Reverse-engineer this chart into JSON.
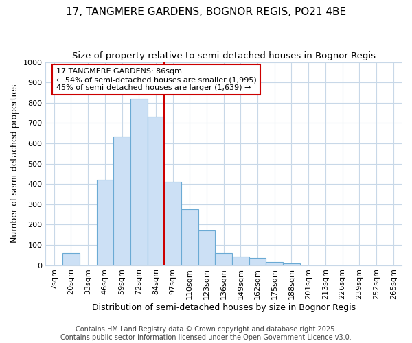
{
  "title_line1": "17, TANGMERE GARDENS, BOGNOR REGIS, PO21 4BE",
  "title_line2": "Size of property relative to semi-detached houses in Bognor Regis",
  "xlabel": "Distribution of semi-detached houses by size in Bognor Regis",
  "ylabel": "Number of semi-detached properties",
  "categories": [
    "7sqm",
    "20sqm",
    "33sqm",
    "46sqm",
    "59sqm",
    "72sqm",
    "84sqm",
    "97sqm",
    "110sqm",
    "123sqm",
    "136sqm",
    "149sqm",
    "162sqm",
    "175sqm",
    "188sqm",
    "201sqm",
    "213sqm",
    "226sqm",
    "239sqm",
    "252sqm",
    "265sqm"
  ],
  "values": [
    0,
    60,
    0,
    420,
    635,
    820,
    730,
    410,
    275,
    170,
    60,
    42,
    35,
    15,
    10,
    0,
    0,
    0,
    0,
    0,
    0
  ],
  "bar_color": "#cce0f5",
  "bar_edge_color": "#6aaad4",
  "property_line_color": "#cc0000",
  "annotation_text": "17 TANGMERE GARDENS: 86sqm\n← 54% of semi-detached houses are smaller (1,995)\n45% of semi-detached houses are larger (1,639) →",
  "annotation_box_color": "#ffffff",
  "annotation_border_color": "#cc0000",
  "ylim": [
    0,
    1000
  ],
  "yticks": [
    0,
    100,
    200,
    300,
    400,
    500,
    600,
    700,
    800,
    900,
    1000
  ],
  "footer_line1": "Contains HM Land Registry data © Crown copyright and database right 2025.",
  "footer_line2": "Contains public sector information licensed under the Open Government Licence v3.0.",
  "background_color": "#ffffff",
  "plot_bg_color": "#ffffff",
  "grid_color": "#c8d8e8",
  "title_fontsize": 11,
  "subtitle_fontsize": 9.5,
  "axis_label_fontsize": 9,
  "tick_fontsize": 8,
  "footer_fontsize": 7,
  "property_bar_index": 6
}
